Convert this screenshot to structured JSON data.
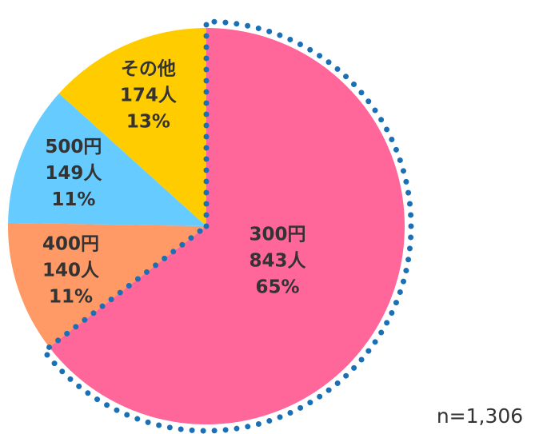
{
  "chart_data": {
    "type": "pie",
    "categories": [
      "300円",
      "400円",
      "500円",
      "その他"
    ],
    "values": [
      843,
      140,
      149,
      174
    ],
    "value_labels": [
      "843人",
      "140人",
      "149人",
      "174人"
    ],
    "percent_labels": [
      "65%",
      "11%",
      "11%",
      "13%"
    ],
    "colors": [
      "#ff6699",
      "#ff9966",
      "#66ccff",
      "#ffcc00"
    ],
    "highlight_color": "#1a6fb5",
    "note": "n=1,306"
  }
}
